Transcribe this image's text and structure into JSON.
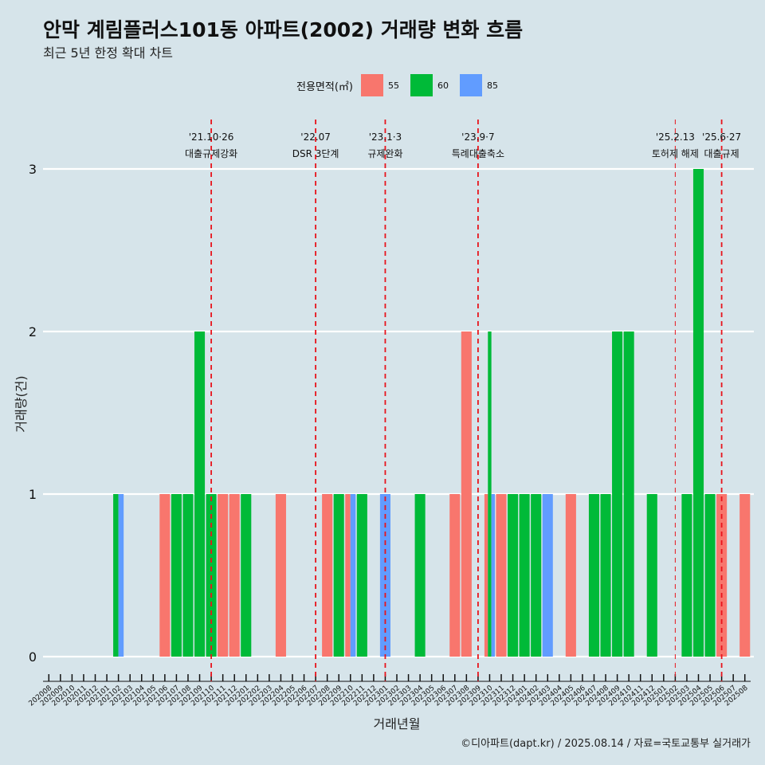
{
  "title": "안막 계림플러스101동 아파트(2002) 거래량 변화 흐름",
  "subtitle": "최근 5년 한정 확대 차트",
  "caption": "©디아파트(dapt.kr) / 2025.08.14 / 자료=국토교통부 실거래가",
  "legend": {
    "title": "전용면적(㎡)",
    "items": [
      {
        "label": "55",
        "color": "#f8766d"
      },
      {
        "label": "60",
        "color": "#00ba38"
      },
      {
        "label": "85",
        "color": "#619cff"
      }
    ]
  },
  "chart_data": {
    "type": "bar",
    "xlabel": "거래년월",
    "ylabel": "거래량(건)",
    "ylim": [
      0,
      3
    ],
    "yticks": [
      0,
      1,
      2,
      3
    ],
    "grid": true,
    "legend_position": "top",
    "categories": [
      "202008",
      "202009",
      "202010",
      "202011",
      "202012",
      "202101",
      "202102",
      "202103",
      "202104",
      "202105",
      "202106",
      "202107",
      "202108",
      "202109",
      "202110",
      "202111",
      "202112",
      "202201",
      "202202",
      "202203",
      "202204",
      "202205",
      "202206",
      "202207",
      "202208",
      "202209",
      "202210",
      "202211",
      "202212",
      "202301",
      "202302",
      "202303",
      "202304",
      "202305",
      "202306",
      "202307",
      "202308",
      "202309",
      "202310",
      "202311",
      "202312",
      "202401",
      "202402",
      "202403",
      "202404",
      "202405",
      "202406",
      "202407",
      "202408",
      "202409",
      "202410",
      "202411",
      "202412",
      "202501",
      "202502",
      "202503",
      "202504",
      "202505",
      "202506",
      "202507",
      "202508"
    ],
    "series": [
      {
        "name": "55",
        "values": [
          0,
          0,
          0,
          0,
          0,
          0,
          0,
          0,
          0,
          0,
          1,
          0,
          0,
          0,
          0,
          1,
          1,
          0,
          0,
          0,
          1,
          0,
          0,
          0,
          1,
          0,
          1,
          0,
          0,
          0,
          0,
          0,
          0,
          0,
          0,
          1,
          2,
          0,
          1,
          1,
          0,
          0,
          0,
          0,
          0,
          1,
          0,
          0,
          0,
          0,
          0,
          0,
          0,
          0,
          0,
          0,
          0,
          0,
          1,
          0,
          1
        ]
      },
      {
        "name": "60",
        "values": [
          0,
          0,
          0,
          0,
          0,
          0,
          1,
          0,
          0,
          0,
          0,
          1,
          1,
          2,
          1,
          0,
          0,
          1,
          0,
          0,
          0,
          0,
          0,
          0,
          0,
          1,
          0,
          1,
          0,
          0,
          0,
          0,
          1,
          0,
          0,
          0,
          0,
          0,
          2,
          0,
          1,
          1,
          1,
          0,
          0,
          0,
          0,
          1,
          1,
          2,
          2,
          0,
          1,
          0,
          0,
          1,
          3,
          1,
          0,
          0,
          0
        ]
      },
      {
        "name": "85",
        "values": [
          0,
          0,
          0,
          0,
          0,
          0,
          1,
          0,
          0,
          0,
          0,
          0,
          0,
          0,
          0,
          0,
          0,
          0,
          0,
          0,
          0,
          0,
          0,
          0,
          0,
          0,
          1,
          0,
          0,
          1,
          0,
          0,
          0,
          0,
          0,
          0,
          0,
          0,
          1,
          0,
          0,
          0,
          0,
          1,
          0,
          0,
          0,
          0,
          0,
          0,
          0,
          0,
          0,
          0,
          0,
          0,
          0,
          0,
          0,
          0,
          0
        ]
      }
    ],
    "events": [
      {
        "at": "202110",
        "date": "'21.10·26",
        "label": "대출규제강화"
      },
      {
        "at": "202207",
        "date": "'22.07",
        "label": "DSR 3단계"
      },
      {
        "at": "202301",
        "date": "'23.1·3",
        "label": "규제완화"
      },
      {
        "at": "202309",
        "date": "'23.9·7",
        "label": "특례대출축소"
      },
      {
        "at": "202502",
        "date": "'25.2.13",
        "label": "토허제 해제"
      },
      {
        "at": "202506",
        "date": "'25.6·27",
        "label": "대출규제"
      }
    ]
  }
}
